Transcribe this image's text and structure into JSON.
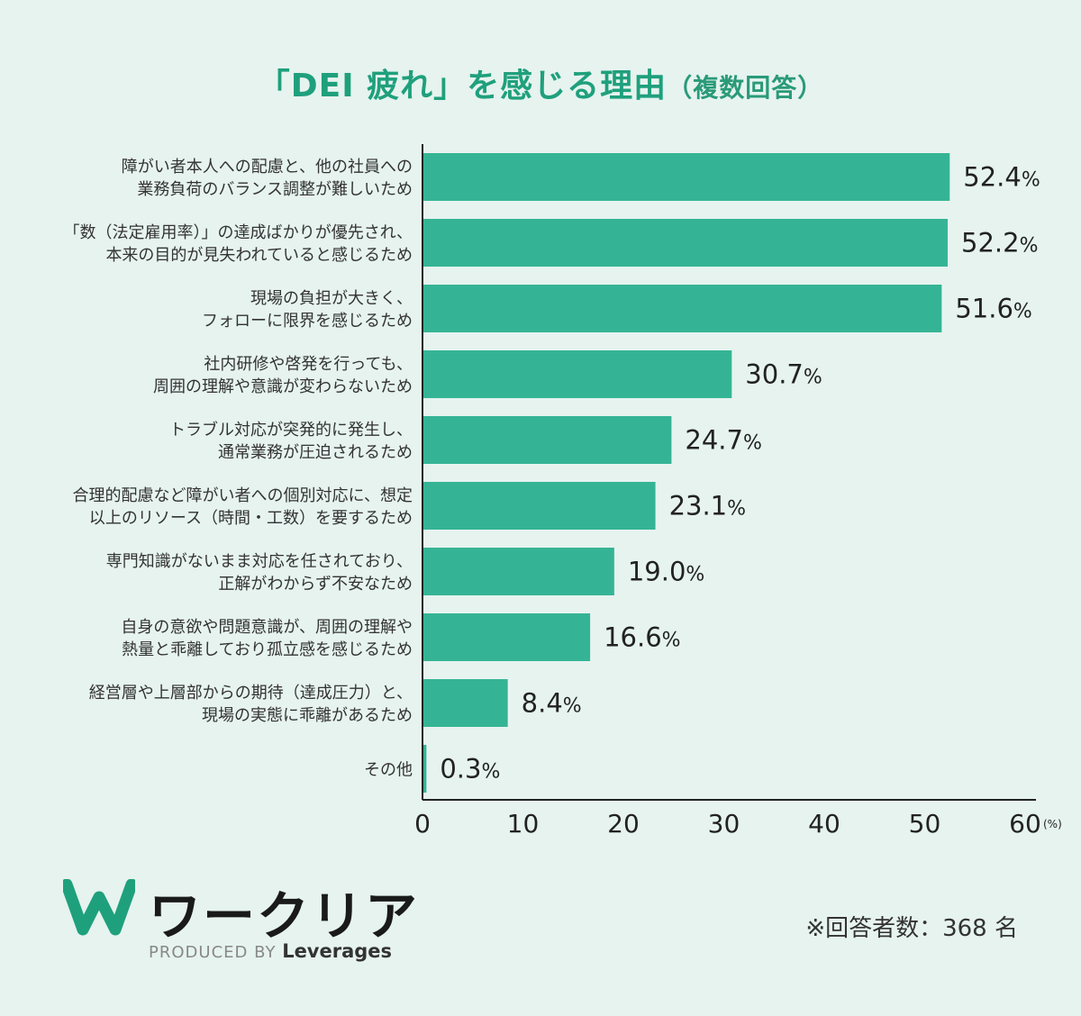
{
  "title": {
    "main": "「DEI 疲れ」を感じる理由",
    "sub": "（複数回答）"
  },
  "colors": {
    "bar": "#35b495",
    "axis": "#222222",
    "title": "#1fa07c",
    "background": "#e6f3ef"
  },
  "chart_data": {
    "type": "bar",
    "orientation": "horizontal",
    "categories": [
      [
        "障がい者本人への配慮と、他の社員への",
        "業務負荷のバランス調整が難しいため"
      ],
      [
        "「数（法定雇用率）」の達成ばかりが優先され、",
        "本来の目的が見失われていると感じるため"
      ],
      [
        "現場の負担が大きく、",
        "フォローに限界を感じるため"
      ],
      [
        "社内研修や啓発を行っても、",
        "周囲の理解や意識が変わらないため"
      ],
      [
        "トラブル対応が突発的に発生し、",
        "通常業務が圧迫されるため"
      ],
      [
        "合理的配慮など障がい者への個別対応に、想定",
        "以上のリソース（時間・工数）を要するため"
      ],
      [
        "専門知識がないまま対応を任されており、",
        "正解がわからず不安なため"
      ],
      [
        "自身の意欲や問題意識が、周囲の理解や",
        "熱量と乖離しており孤立感を感じるため"
      ],
      [
        "経営層や上層部からの期待（達成圧力）と、",
        "現場の実態に乖離があるため"
      ],
      [
        "その他"
      ]
    ],
    "values": [
      52.4,
      52.2,
      51.6,
      30.7,
      24.7,
      23.1,
      19.0,
      16.6,
      8.4,
      0.3
    ],
    "value_labels": [
      "52.4",
      "52.2",
      "51.6",
      "30.7",
      "24.7",
      "23.1",
      "19.0",
      "16.6",
      "8.4",
      "0.3"
    ],
    "value_suffix": "%",
    "xlim": [
      0,
      60
    ],
    "xticks": [
      0,
      10,
      20,
      30,
      40,
      50,
      60
    ],
    "x_unit": "(%)",
    "grid": false
  },
  "footer": {
    "brand_name": "ワークリア",
    "produced_by": "PRODUCED BY",
    "company": "Leverages",
    "note": "※回答者数：368 名"
  }
}
